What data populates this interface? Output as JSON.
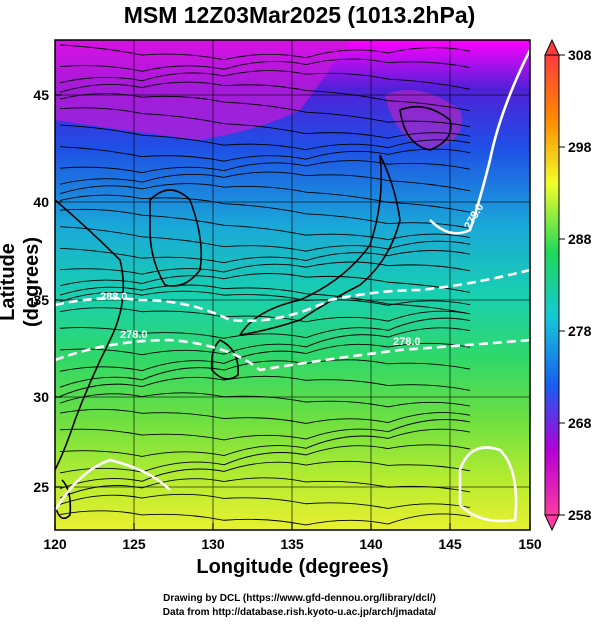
{
  "title": "MSM 12Z03Mar2025 (1013.2hPa)",
  "axes": {
    "xlabel": "Longitude (degrees)",
    "ylabel": "Latitude  (degrees)",
    "x_ticks": [
      "120",
      "125",
      "130",
      "135",
      "140",
      "145",
      "150"
    ],
    "y_ticks": [
      "45",
      "40",
      "35",
      "30",
      "25"
    ],
    "x_range": [
      120,
      150
    ],
    "y_range": [
      22.4,
      47.6
    ]
  },
  "colorbar": {
    "ticks": [
      "308",
      "298",
      "288",
      "278",
      "268",
      "258"
    ],
    "range": [
      258,
      308
    ],
    "colors": [
      "#ff3c3c",
      "#ff8a00",
      "#f0ff2a",
      "#1fd85a",
      "#16c8d8",
      "#1a5cf0",
      "#b400d6",
      "#ff3aa0"
    ]
  },
  "contour_labels": [
    "288.0",
    "278.0",
    "278.0",
    "278.0"
  ],
  "credits": {
    "line1": "Drawing by DCL (https://www.gfd-dennou.org/library/dcl/)",
    "line2": "Data from http://database.rish.kyoto-u.ac.jp/arch/jmadata/"
  }
}
